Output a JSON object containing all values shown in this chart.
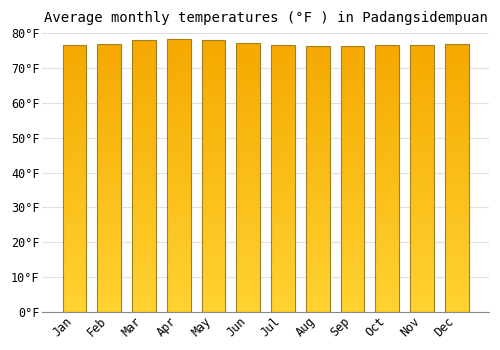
{
  "title": "Average monthly temperatures (°F ) in Padangsidempuan",
  "months": [
    "Jan",
    "Feb",
    "Mar",
    "Apr",
    "May",
    "Jun",
    "Jul",
    "Aug",
    "Sep",
    "Oct",
    "Nov",
    "Dec"
  ],
  "values": [
    76.6,
    76.8,
    78.1,
    78.4,
    78.1,
    77.2,
    76.6,
    76.3,
    76.3,
    76.6,
    76.6,
    76.8
  ],
  "bar_color_top": "#F5A800",
  "bar_color_bottom": "#FFD230",
  "bar_edge_color": "#A08020",
  "background_color": "#FFFFFF",
  "grid_color": "#E0E0E0",
  "ylim": [
    0,
    80
  ],
  "yticks": [
    0,
    10,
    20,
    30,
    40,
    50,
    60,
    70,
    80
  ],
  "title_fontsize": 10,
  "tick_fontsize": 8.5,
  "bar_width": 0.68
}
